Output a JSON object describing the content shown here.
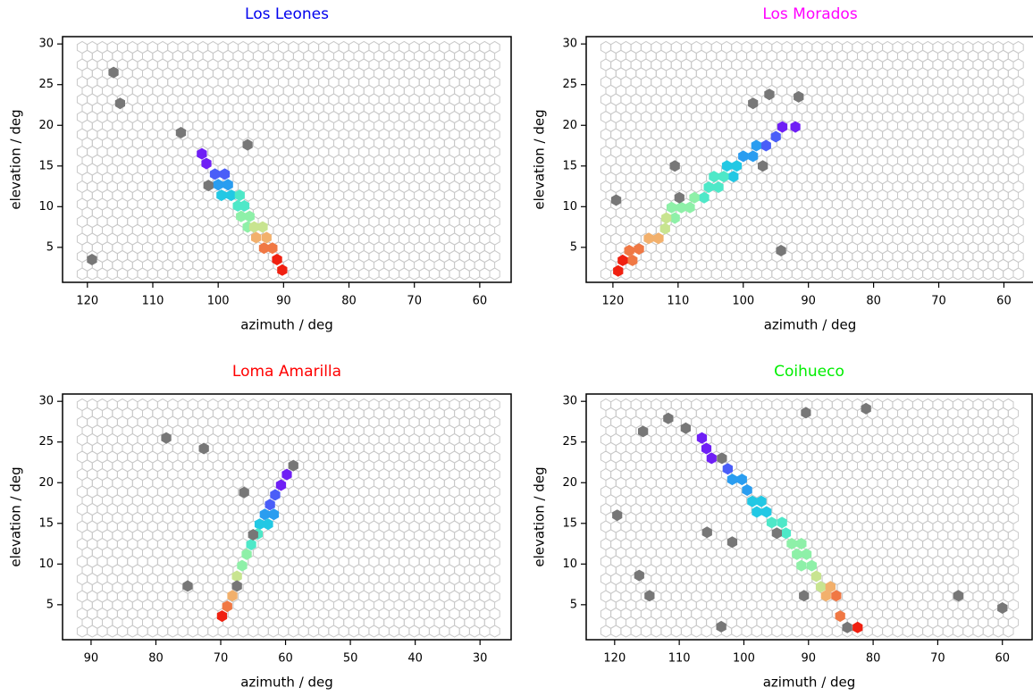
{
  "chart_data": [
    {
      "type": "scatter",
      "title": "Los Leones",
      "title_color": "#0000ee",
      "xlabel": "azimuth / deg",
      "ylabel": "elevation / deg",
      "xlim": [
        123.8,
        55.2
      ],
      "ylim": [
        0.7,
        30.9
      ],
      "xticks": [
        120,
        110,
        100,
        90,
        80,
        70,
        60
      ],
      "yticks": [
        5,
        10,
        15,
        20,
        25,
        30
      ],
      "series": [
        {
          "x": [
            102.5,
            101.8,
            100.5,
            99,
            100,
            98.5,
            99.5,
            98,
            96.7,
            97,
            96,
            96.5,
            95.2,
            95.5,
            94.5,
            93.2,
            94.2,
            92.6,
            93,
            91.7,
            91,
            90.2
          ],
          "y": [
            16.5,
            15.3,
            14,
            14,
            12.7,
            12.7,
            11.4,
            11.4,
            11.4,
            10.1,
            10.1,
            8.8,
            8.8,
            7.5,
            7.5,
            7.5,
            6.2,
            6.2,
            4.9,
            4.9,
            3.5,
            2.2
          ],
          "colors": [
            "#6f1ff5",
            "#6f1ff5",
            "#4a5ef8",
            "#4a5ef8",
            "#2a9df0",
            "#2a9df0",
            "#22c8e4",
            "#22c8e4",
            "#4ee8c8",
            "#4ee8c8",
            "#4ee8c8",
            "#8ef0a8",
            "#8ef0a8",
            "#8ef0a8",
            "#c8e490",
            "#c8e490",
            "#f2b06c",
            "#f2b06c",
            "#f07844",
            "#f07844",
            "#f02010",
            "#f02010"
          ]
        },
        {
          "x": [
            116,
            115,
            105.7,
            95.5,
            101.5,
            119.3
          ],
          "y": [
            26.5,
            22.7,
            19.1,
            17.6,
            12.6,
            3.5
          ],
          "color": "#777777"
        }
      ]
    },
    {
      "type": "scatter",
      "title": "Los Morados",
      "title_color": "#ff00ff",
      "xlabel": "azimuth / deg",
      "ylabel": "elevation / deg",
      "xlim": [
        124.1,
        55.4
      ],
      "ylim": [
        0.7,
        30.9
      ],
      "xticks": [
        120,
        110,
        100,
        90,
        80,
        70,
        60
      ],
      "yticks": [
        5,
        10,
        15,
        20,
        25,
        30
      ],
      "series": [
        {
          "x": [
            92,
            94,
            95,
            96.5,
            98,
            98.5,
            100,
            101,
            102.5,
            101.5,
            103,
            104.5,
            103.8,
            105.3,
            106,
            107.5,
            108.2,
            109.5,
            111,
            110.5,
            111.8,
            112,
            113,
            114.5,
            116,
            117.5,
            117,
            118.5,
            119.2
          ],
          "y": [
            19.8,
            19.8,
            18.6,
            17.5,
            17.5,
            16.2,
            16.2,
            15,
            15,
            13.7,
            13.7,
            13.7,
            12.4,
            12.4,
            11.1,
            11.1,
            9.9,
            9.9,
            9.9,
            8.6,
            8.6,
            7.3,
            6.1,
            6.1,
            4.8,
            4.6,
            3.4,
            3.4,
            2.1
          ],
          "colors": [
            "#6f1ff5",
            "#6f1ff5",
            "#4a5ef8",
            "#4a5ef8",
            "#2a9df0",
            "#2a9df0",
            "#2a9df0",
            "#22c8e4",
            "#22c8e4",
            "#22c8e4",
            "#4ee8c8",
            "#4ee8c8",
            "#4ee8c8",
            "#4ee8c8",
            "#4ee8c8",
            "#8ef0a8",
            "#8ef0a8",
            "#8ef0a8",
            "#8ef0a8",
            "#8ef0a8",
            "#c8e490",
            "#c8e490",
            "#f2b06c",
            "#f2b06c",
            "#f07844",
            "#f07844",
            "#f07844",
            "#f02010",
            "#f02010"
          ]
        },
        {
          "x": [
            98.5,
            96,
            91.5,
            97,
            110.5,
            119.5,
            94.2,
            109.8
          ],
          "y": [
            22.7,
            23.8,
            23.5,
            15,
            15,
            10.8,
            4.6,
            11.1
          ],
          "color": "#777777"
        }
      ]
    },
    {
      "type": "scatter",
      "title": "Loma Amarilla",
      "title_color": "#ff0000",
      "xlabel": "azimuth / deg",
      "ylabel": "elevation / deg",
      "xlim": [
        94.4,
        25.2
      ],
      "ylim": [
        0.7,
        30.9
      ],
      "xticks": [
        90,
        80,
        70,
        60,
        50,
        40,
        30
      ],
      "yticks": [
        5,
        10,
        15,
        20,
        25,
        30
      ],
      "series": [
        {
          "x": [
            59.8,
            60.7,
            61.6,
            62.4,
            61.8,
            63.2,
            62.7,
            64.0,
            64.3,
            65.3,
            66.0,
            66.7,
            67.5,
            68.2,
            69.0,
            69.8
          ],
          "y": [
            21.0,
            19.7,
            18.5,
            17.3,
            16.1,
            16.1,
            14.9,
            14.9,
            13.7,
            12.4,
            11.2,
            9.8,
            8.5,
            6.1,
            4.8,
            3.6
          ],
          "colors": [
            "#6f1ff5",
            "#6f1ff5",
            "#4a5ef8",
            "#4a5ef8",
            "#2a9df0",
            "#2a9df0",
            "#22c8e4",
            "#22c8e4",
            "#4ee8c8",
            "#4ee8c8",
            "#8ef0a8",
            "#8ef0a8",
            "#c8e490",
            "#f2b06c",
            "#f07844",
            "#f02010"
          ]
        },
        {
          "x": [
            58.8,
            65.0,
            78.4,
            72.6,
            66.4,
            75.1,
            67.5
          ],
          "y": [
            22.1,
            13.6,
            25.5,
            24.2,
            18.8,
            7.3,
            7.3
          ],
          "color": "#777777"
        }
      ]
    },
    {
      "type": "scatter",
      "title": "Coihueco",
      "title_color": "#00ee00",
      "xlabel": "azimuth / deg",
      "ylabel": "elevation / deg",
      "xlim": [
        124.4,
        55.4
      ],
      "ylim": [
        0.7,
        30.9
      ],
      "xticks": [
        120,
        110,
        100,
        90,
        80,
        70,
        60
      ],
      "yticks": [
        5,
        10,
        15,
        20,
        25,
        30
      ],
      "series": [
        {
          "x": [
            106.5,
            105.8,
            105.0,
            102.5,
            101.8,
            100.3,
            99.5,
            98.7,
            97.3,
            98.0,
            96.5,
            95.7,
            94.1,
            93.5,
            92.6,
            91.1,
            91.8,
            90.3,
            91.1,
            89.5,
            88.8,
            88.1,
            86.6,
            87.3,
            85.7,
            85.1,
            82.4
          ],
          "y": [
            25.5,
            24.2,
            23.0,
            21.7,
            20.4,
            20.4,
            19.1,
            17.7,
            17.7,
            16.4,
            16.4,
            15.1,
            15.1,
            13.8,
            12.5,
            12.5,
            11.2,
            11.2,
            9.8,
            9.8,
            8.5,
            7.2,
            7.2,
            6.1,
            6.1,
            3.6,
            2.2
          ],
          "colors": [
            "#6f1ff5",
            "#6f1ff5",
            "#6f1ff5",
            "#4a5ef8",
            "#2a9df0",
            "#2a9df0",
            "#2a9df0",
            "#22c8e4",
            "#22c8e4",
            "#22c8e4",
            "#22c8e4",
            "#4ee8c8",
            "#4ee8c8",
            "#4ee8c8",
            "#8ef0a8",
            "#8ef0a8",
            "#8ef0a8",
            "#8ef0a8",
            "#8ef0a8",
            "#8ef0a8",
            "#c8e490",
            "#c8e490",
            "#f2b06c",
            "#f2b06c",
            "#f07844",
            "#f07844",
            "#f02010"
          ]
        },
        {
          "x": [
            103.4,
            94.9,
            84.0,
            115.6,
            111.7,
            109.0,
            90.4,
            81.1,
            119.6,
            105.7,
            101.8,
            116.2,
            114.6,
            90.7,
            103.5,
            66.8,
            60.0
          ],
          "y": [
            23.0,
            13.8,
            2.2,
            26.3,
            27.9,
            26.7,
            28.6,
            29.1,
            16.0,
            13.9,
            12.7,
            8.6,
            6.1,
            6.1,
            2.3,
            6.1,
            4.6
          ],
          "color": "#777777"
        }
      ]
    }
  ]
}
